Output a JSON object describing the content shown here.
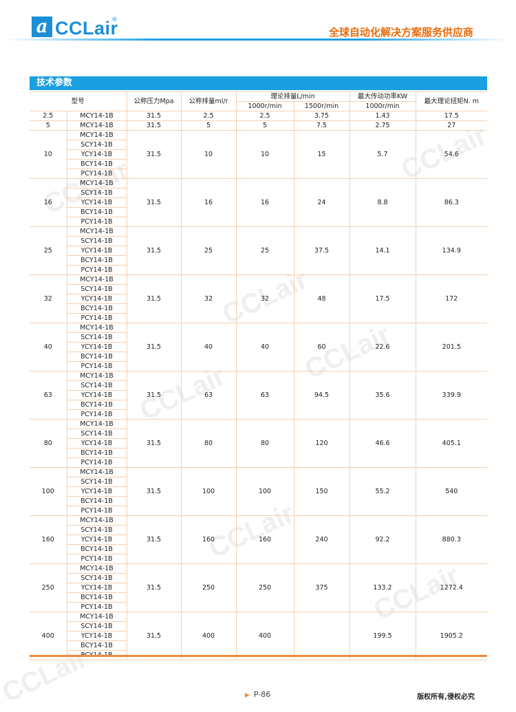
{
  "header": {
    "logo_text": "CCLair",
    "logo_mark": "a",
    "registered": "®",
    "slogan": "全球自动化解决方案服务供应商"
  },
  "section_title": "技术参数",
  "table": {
    "headers": {
      "model": "型号",
      "pressure": "公称压力Mpa",
      "displacement": "公称排量ml/r",
      "theory_flow": "理论排量L/min",
      "flow_1000": "1000r/min",
      "flow_1500": "1500r/min",
      "max_power": "最大传动功率KW",
      "power_1000": "1000r/min",
      "max_torque": "最大理论扭矩N. m"
    },
    "single_rows": [
      {
        "size": "2.5",
        "model": "MCY14-1B",
        "pressure": "31.5",
        "disp": "2.5",
        "f1000": "2.5",
        "f1500": "3.75",
        "power": "1.43",
        "torque": "17.5"
      },
      {
        "size": "5",
        "model": "MCY14-1B",
        "pressure": "31.5",
        "disp": "5",
        "f1000": "5",
        "f1500": "7.5",
        "power": "2.75",
        "torque": "27"
      }
    ],
    "models": [
      "MCY14-1B",
      "SCY14-1B",
      "YCY14-1B",
      "BCY14-1B",
      "PCY14-1B"
    ],
    "group_rows": [
      {
        "size": "10",
        "pressure": "31.5",
        "disp": "10",
        "f1000": "10",
        "f1500": "15",
        "power": "5.7",
        "torque": "54.6"
      },
      {
        "size": "16",
        "pressure": "31.5",
        "disp": "16",
        "f1000": "16",
        "f1500": "24",
        "power": "8.8",
        "torque": "86.3"
      },
      {
        "size": "25",
        "pressure": "31.5",
        "disp": "25",
        "f1000": "25",
        "f1500": "37.5",
        "power": "14.1",
        "torque": "134.9"
      },
      {
        "size": "32",
        "pressure": "31.5",
        "disp": "32",
        "f1000": "32",
        "f1500": "48",
        "power": "17.5",
        "torque": "172"
      },
      {
        "size": "40",
        "pressure": "31.5",
        "disp": "40",
        "f1000": "40",
        "f1500": "60",
        "power": "22.6",
        "torque": "201.5"
      },
      {
        "size": "63",
        "pressure": "31.5",
        "disp": "63",
        "f1000": "63",
        "f1500": "94.5",
        "power": "35.6",
        "torque": "339.9"
      },
      {
        "size": "80",
        "pressure": "31.5",
        "disp": "80",
        "f1000": "80",
        "f1500": "120",
        "power": "46.6",
        "torque": "405.1"
      },
      {
        "size": "100",
        "pressure": "31.5",
        "disp": "100",
        "f1000": "100",
        "f1500": "150",
        "power": "55.2",
        "torque": "540"
      },
      {
        "size": "160",
        "pressure": "31.5",
        "disp": "160",
        "f1000": "160",
        "f1500": "240",
        "power": "92.2",
        "torque": "880.3"
      },
      {
        "size": "250",
        "pressure": "31.5",
        "disp": "250",
        "f1000": "250",
        "f1500": "375",
        "power": "133.2",
        "torque": "1272.4"
      },
      {
        "size": "400",
        "pressure": "31.5",
        "disp": "400",
        "f1000": "400",
        "f1500": "",
        "power": "199.5",
        "torque": "1905.2"
      }
    ]
  },
  "footer": {
    "page": "P-86",
    "copyright": "版权所有,侵权必究"
  },
  "colors": {
    "brand_blue": "#1a9fe0",
    "accent_orange": "#ef8a3c",
    "grid": "#f5cfb0"
  },
  "watermark": "CCLair"
}
